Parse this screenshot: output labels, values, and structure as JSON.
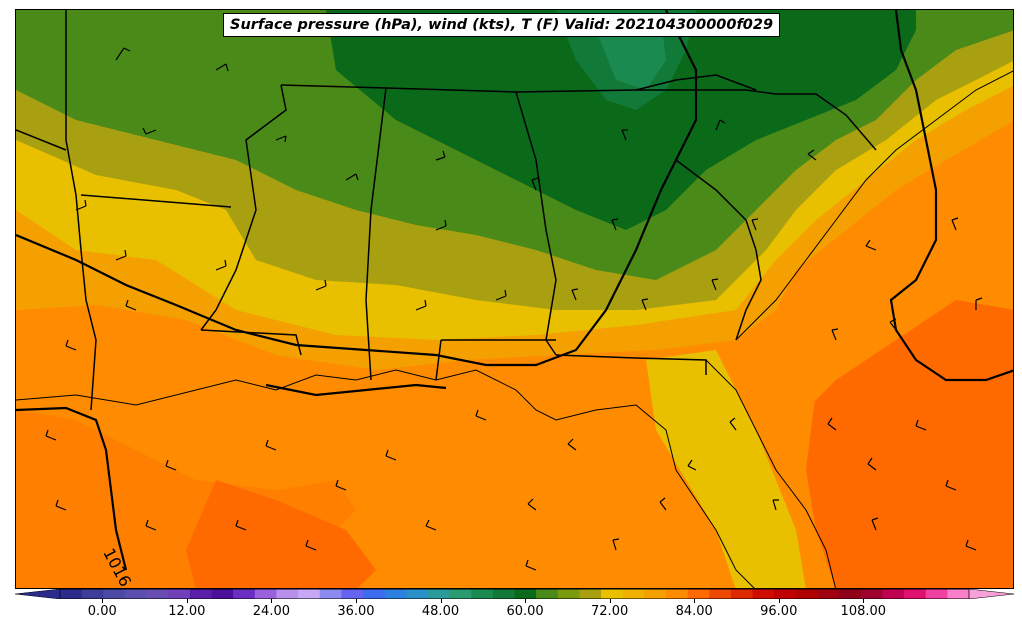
{
  "title": "Surface pressure (hPa), wind (kts), T (F) Valid: 202104300000f029",
  "contour_labels": [
    "1016"
  ],
  "colorbar": {
    "tick_labels": [
      "0.00",
      "12.00",
      "24.00",
      "36.00",
      "48.00",
      "60.00",
      "72.00",
      "84.00",
      "96.00",
      "108.00"
    ],
    "tick_values": [
      0,
      12,
      24,
      36,
      48,
      60,
      72,
      84,
      96,
      108
    ],
    "min": -6,
    "max": 123,
    "colors": [
      "#2b2b8c",
      "#3d3d9a",
      "#4b4ba6",
      "#5a4fae",
      "#6a4db3",
      "#7040b8",
      "#5a1fa8",
      "#4b0f9c",
      "#6a2ec4",
      "#9b60dc",
      "#b890ec",
      "#c8a8f4",
      "#8c8cf0",
      "#6464f0",
      "#3c6cf0",
      "#2c80e0",
      "#2a90c8",
      "#2a9a9a",
      "#2a9a70",
      "#1a8a50",
      "#127a38",
      "#0a6a1a",
      "#4a8a18",
      "#7a9a10",
      "#a8a010",
      "#e8c000",
      "#f0b000",
      "#f4a000",
      "#ff8c00",
      "#ff6a00",
      "#f04800",
      "#e02800",
      "#d00c00",
      "#c00000",
      "#b00000",
      "#a00010",
      "#900018",
      "#a00030",
      "#c00050",
      "#e01070",
      "#f040a0",
      "#f880c8"
    ],
    "extend_low": "#2b2b8c",
    "extend_high": "#f8a0d8"
  }
}
